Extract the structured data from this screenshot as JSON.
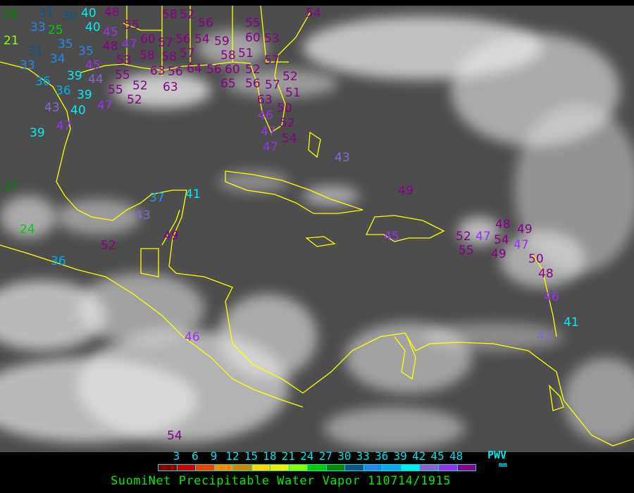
{
  "title": "SuomiNet Precipitable Water Vapor 110714/1915",
  "legend": {
    "unit": "PWV",
    "unit_sub": "mm",
    "ticks": [
      "3",
      "6",
      "9",
      "12",
      "15",
      "18",
      "21",
      "24",
      "27",
      "30",
      "33",
      "36",
      "39",
      "42",
      "45",
      "48"
    ],
    "colors": [
      "#8b0000",
      "#cc0000",
      "#ee4400",
      "#ff8800",
      "#cc8800",
      "#ffd700",
      "#eeee00",
      "#88ff00",
      "#00cc00",
      "#008800",
      "#115588",
      "#2288ee",
      "#00aaee",
      "#00eeee",
      "#8866cc",
      "#9933ee",
      "#880088"
    ]
  },
  "map": {
    "coastline_color": "#ffff00",
    "station_values": [
      28,
      31,
      30,
      40,
      48,
      21,
      33,
      25,
      40,
      45,
      48,
      55,
      35,
      47,
      60,
      31,
      34,
      35,
      45,
      53,
      33,
      44,
      39,
      58,
      57,
      58,
      56,
      54,
      59,
      58,
      58,
      52,
      56,
      55,
      60,
      53,
      57,
      63,
      56,
      64,
      56,
      60,
      65,
      51,
      52,
      56,
      57,
      55,
      52,
      63,
      36,
      36,
      39,
      55,
      52,
      47,
      40,
      43,
      47,
      39,
      57,
      52,
      63,
      51,
      50,
      52,
      46,
      47,
      54,
      47,
      54,
      27,
      24,
      36,
      52,
      37,
      41,
      43,
      49,
      46,
      54,
      43,
      49,
      45,
      52,
      47,
      55,
      54,
      49,
      48,
      47,
      49,
      50,
      48,
      46,
      41,
      42
    ]
  }
}
